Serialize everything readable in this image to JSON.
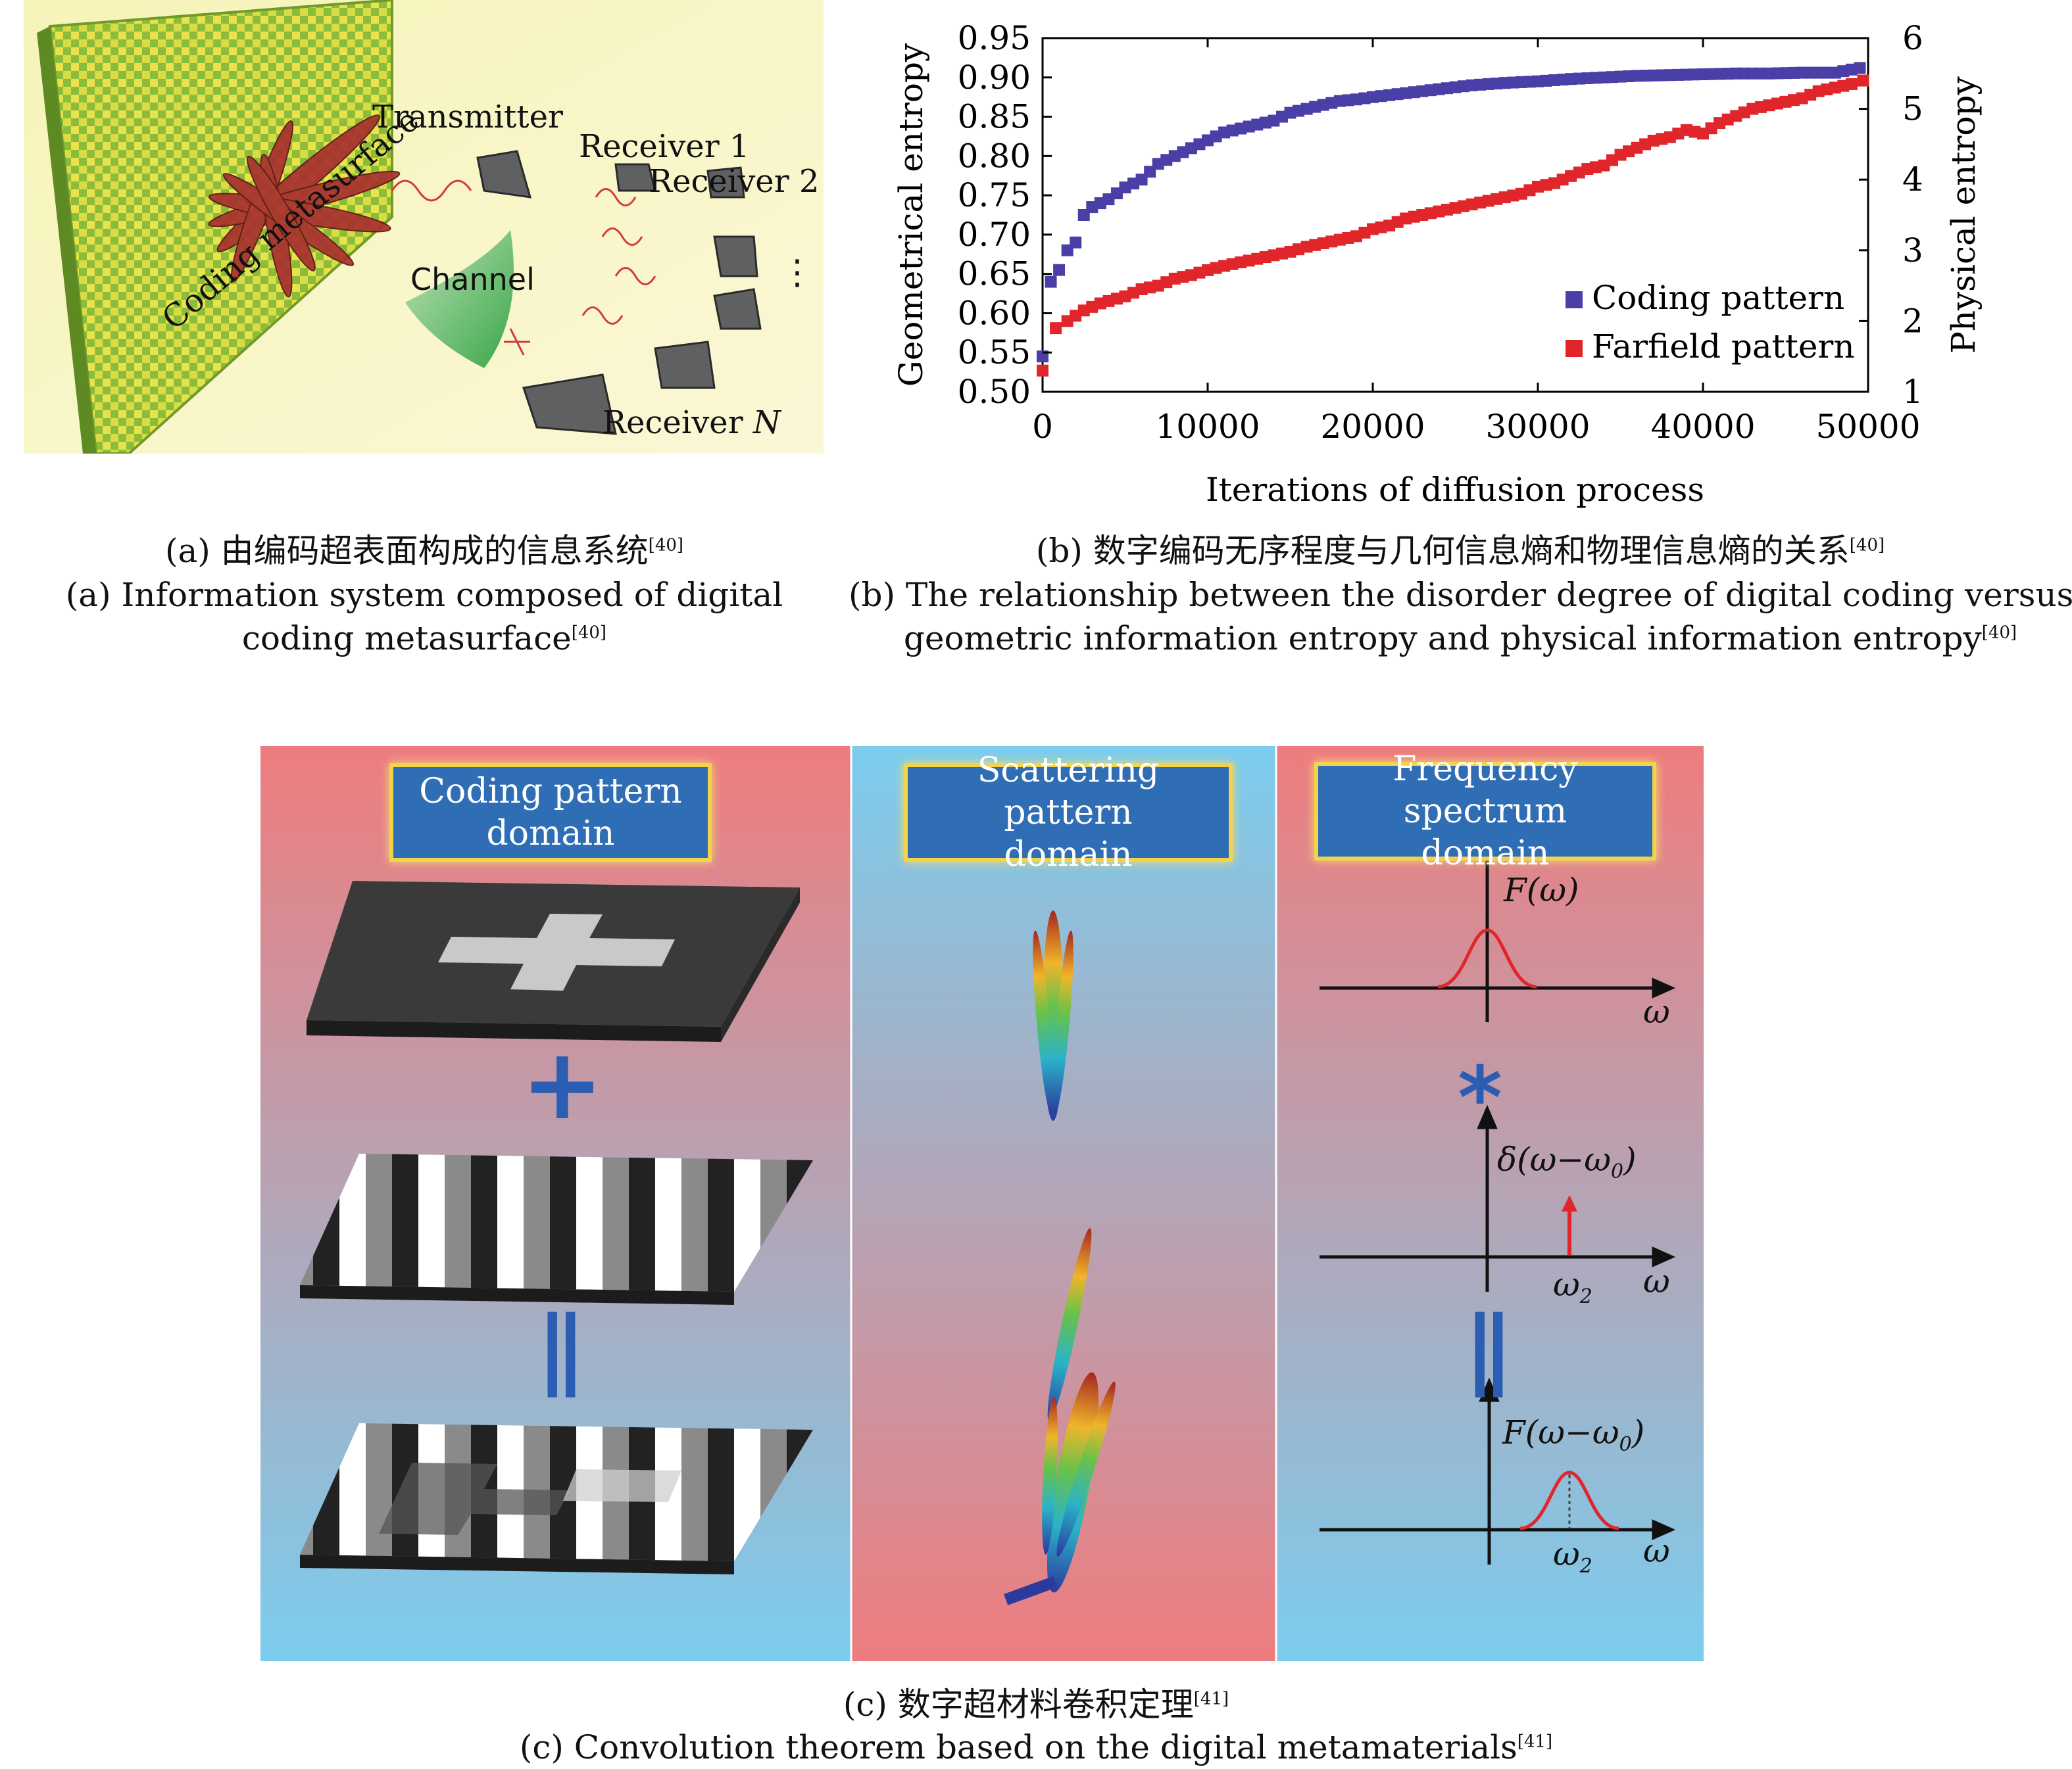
{
  "panel_a": {
    "labels": {
      "transmitter": "Transmitter",
      "receiver1": "Receiver 1",
      "receiver2": "Receiver 2",
      "dots": "⋮",
      "channel": "Channel",
      "metasurface": "Coding metasurface",
      "receiverN_prefix": "Receiver ",
      "receiverN_var": "N"
    },
    "caption_cn": "(a) 由编码超表面构成的信息系统",
    "caption_cn_ref": "[40]",
    "caption_en_line1": "(a) Information system composed of digital",
    "caption_en_line2": "coding metasurface",
    "caption_en_ref": "[40]"
  },
  "panel_b": {
    "caption_cn": "(b) 数字编码无序程度与几何信息熵和物理信息熵的关系",
    "caption_cn_ref": "[40]",
    "caption_en_line1": "(b) The relationship between the disorder degree of digital coding versus",
    "caption_en_line2": "geometric information entropy and physical information entropy",
    "caption_en_ref": "[40]"
  },
  "chart_data": {
    "type": "scatter",
    "xlabel": "Iterations of diffusion process",
    "ylabel": "Geometrical entropy",
    "y2label": "Physical entropy",
    "xlim": [
      0,
      50000
    ],
    "ylim": [
      0.5,
      0.95
    ],
    "y2lim": [
      1,
      6
    ],
    "x_ticks": [
      "0",
      "10000",
      "20000",
      "30000",
      "40000",
      "50000"
    ],
    "y_ticks": [
      "0.50",
      "0.55",
      "0.60",
      "0.65",
      "0.70",
      "0.75",
      "0.80",
      "0.85",
      "0.90",
      "0.95"
    ],
    "y2_ticks": [
      "1",
      "2",
      "3",
      "4",
      "5",
      "6"
    ],
    "legend_position": "bottom-right",
    "series": [
      {
        "name": "Coding pattern",
        "color": "#4a3fa6",
        "axis": "left",
        "points": [
          [
            0,
            0.545
          ],
          [
            500,
            0.64
          ],
          [
            1000,
            0.655
          ],
          [
            1500,
            0.68
          ],
          [
            2000,
            0.69
          ],
          [
            2500,
            0.725
          ],
          [
            3000,
            0.735
          ],
          [
            4000,
            0.745
          ],
          [
            5000,
            0.76
          ],
          [
            6000,
            0.77
          ],
          [
            7000,
            0.79
          ],
          [
            8000,
            0.8
          ],
          [
            9000,
            0.81
          ],
          [
            10000,
            0.82
          ],
          [
            11000,
            0.83
          ],
          [
            12000,
            0.835
          ],
          [
            13000,
            0.84
          ],
          [
            14000,
            0.845
          ],
          [
            15000,
            0.855
          ],
          [
            16000,
            0.86
          ],
          [
            17000,
            0.865
          ],
          [
            18000,
            0.87
          ],
          [
            19000,
            0.872
          ],
          [
            20000,
            0.875
          ],
          [
            22000,
            0.88
          ],
          [
            24000,
            0.885
          ],
          [
            26000,
            0.89
          ],
          [
            28000,
            0.893
          ],
          [
            30000,
            0.895
          ],
          [
            32000,
            0.898
          ],
          [
            34000,
            0.9
          ],
          [
            36000,
            0.902
          ],
          [
            38000,
            0.903
          ],
          [
            40000,
            0.904
          ],
          [
            42000,
            0.905
          ],
          [
            44000,
            0.905
          ],
          [
            46000,
            0.906
          ],
          [
            48000,
            0.906
          ],
          [
            49500,
            0.912
          ]
        ]
      },
      {
        "name": "Farfield pattern",
        "color": "#e0262b",
        "axis": "right",
        "points": [
          [
            0,
            1.3
          ],
          [
            800,
            1.9
          ],
          [
            1500,
            2.0
          ],
          [
            2500,
            2.15
          ],
          [
            3500,
            2.25
          ],
          [
            5000,
            2.35
          ],
          [
            6000,
            2.45
          ],
          [
            7000,
            2.5
          ],
          [
            8000,
            2.6
          ],
          [
            9000,
            2.65
          ],
          [
            10000,
            2.72
          ],
          [
            11000,
            2.78
          ],
          [
            12000,
            2.83
          ],
          [
            13000,
            2.88
          ],
          [
            14000,
            2.93
          ],
          [
            15000,
            2.98
          ],
          [
            16000,
            3.05
          ],
          [
            17000,
            3.1
          ],
          [
            18000,
            3.15
          ],
          [
            19000,
            3.2
          ],
          [
            20000,
            3.3
          ],
          [
            21000,
            3.35
          ],
          [
            22000,
            3.45
          ],
          [
            23000,
            3.5
          ],
          [
            24000,
            3.55
          ],
          [
            25000,
            3.6
          ],
          [
            26000,
            3.65
          ],
          [
            27000,
            3.7
          ],
          [
            28000,
            3.75
          ],
          [
            29000,
            3.8
          ],
          [
            30000,
            3.9
          ],
          [
            31000,
            3.95
          ],
          [
            32000,
            4.05
          ],
          [
            33000,
            4.15
          ],
          [
            34000,
            4.2
          ],
          [
            35000,
            4.35
          ],
          [
            36000,
            4.45
          ],
          [
            37000,
            4.55
          ],
          [
            38000,
            4.6
          ],
          [
            39000,
            4.7
          ],
          [
            40000,
            4.65
          ],
          [
            41000,
            4.8
          ],
          [
            42000,
            4.9
          ],
          [
            43000,
            5.0
          ],
          [
            44000,
            5.05
          ],
          [
            45000,
            5.1
          ],
          [
            46000,
            5.15
          ],
          [
            47000,
            5.25
          ],
          [
            48000,
            5.3
          ],
          [
            49000,
            5.35
          ],
          [
            49700,
            5.4
          ]
        ]
      }
    ]
  },
  "panel_c": {
    "col1_title_line1": "Coding pattern",
    "col1_title_line2": "domain",
    "col2_title_line1": "Scattering pattern",
    "col2_title_line2": "domain",
    "col3_title_line1": "Frequency spectrum",
    "col3_title_line2": "domain",
    "plus_symbol": "+",
    "equals_symbol": "||",
    "star_symbol": "*",
    "eq1_label": "F(ω)",
    "eq2_label": "δ(ω−ω",
    "eq2_sub": "0",
    "eq3_label": "F(ω−ω",
    "eq3_sub": "0",
    "omega": "ω",
    "omega2": "ω",
    "omega2_sub": "2",
    "colors": {
      "red_panel": "#ee7c7e",
      "blue_panel": "#7bcdee",
      "title_bg": "#2f6db5",
      "title_border": "#f3d34a",
      "symbol_blue": "#2b5eb2",
      "curve_red": "#e0262b"
    },
    "caption_cn": "(c) 数字超材料卷积定理",
    "caption_cn_ref": "[41]",
    "caption_en": "(c) Convolution theorem based on the digital metamaterials",
    "caption_en_ref": "[41]"
  }
}
